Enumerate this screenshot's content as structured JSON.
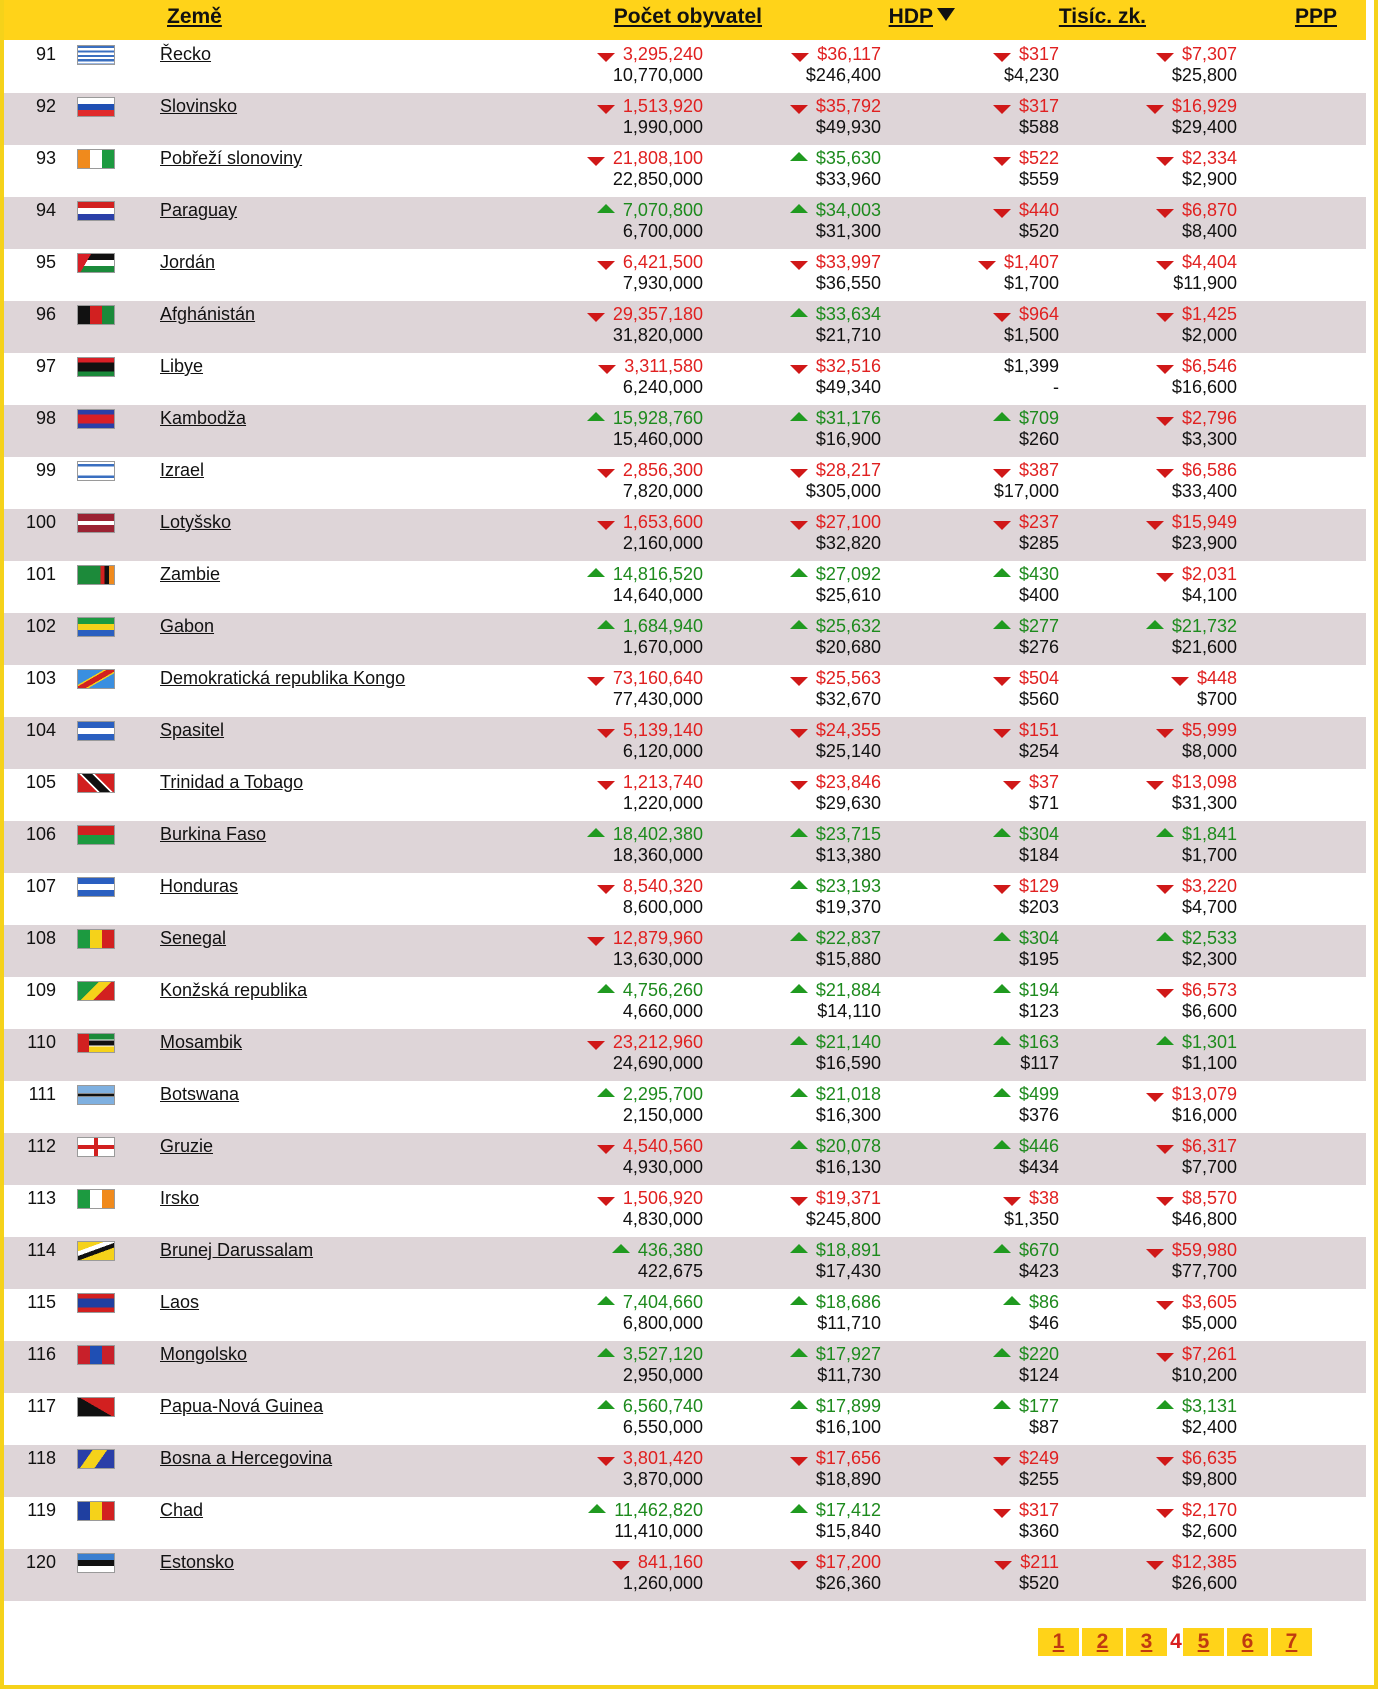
{
  "header": {
    "country": "Země",
    "population": "Počet obyvatel",
    "gdp": "HDP",
    "thousands": "Tisíc. zk.",
    "ppp": "PPP"
  },
  "rows": [
    {
      "rank": "91",
      "name": "Řecko",
      "flag": "greece-flag",
      "pop": "3,295,240",
      "pop_dir": "down",
      "pop2": "10,770,000",
      "gdp": "$36,117",
      "gdp_dir": "down",
      "gdp2": "$246,400",
      "tz": "$317",
      "tz_dir": "down",
      "tz2": "$4,230",
      "ppp": "$7,307",
      "ppp_dir": "down",
      "ppp2": "$25,800"
    },
    {
      "rank": "92",
      "name": "Slovinsko",
      "flag": "slovenia-flag",
      "pop": "1,513,920",
      "pop_dir": "down",
      "pop2": "1,990,000",
      "gdp": "$35,792",
      "gdp_dir": "down",
      "gdp2": "$49,930",
      "tz": "$317",
      "tz_dir": "down",
      "tz2": "$588",
      "ppp": "$16,929",
      "ppp_dir": "down",
      "ppp2": "$29,400"
    },
    {
      "rank": "93",
      "name": "Pobřeží slonoviny",
      "flag": "ivory-coast-flag",
      "pop": "21,808,100",
      "pop_dir": "down",
      "pop2": "22,850,000",
      "gdp": "$35,630",
      "gdp_dir": "up",
      "gdp2": "$33,960",
      "tz": "$522",
      "tz_dir": "down",
      "tz2": "$559",
      "ppp": "$2,334",
      "ppp_dir": "down",
      "ppp2": "$2,900"
    },
    {
      "rank": "94",
      "name": "Paraguay",
      "flag": "paraguay-flag",
      "pop": "7,070,800",
      "pop_dir": "up",
      "pop2": "6,700,000",
      "gdp": "$34,003",
      "gdp_dir": "up",
      "gdp2": "$31,300",
      "tz": "$440",
      "tz_dir": "down",
      "tz2": "$520",
      "ppp": "$6,870",
      "ppp_dir": "down",
      "ppp2": "$8,400"
    },
    {
      "rank": "95",
      "name": "Jordán",
      "flag": "jordan-flag",
      "pop": "6,421,500",
      "pop_dir": "down",
      "pop2": "7,930,000",
      "gdp": "$33,997",
      "gdp_dir": "down",
      "gdp2": "$36,550",
      "tz": "$1,407",
      "tz_dir": "down",
      "tz2": "$1,700",
      "ppp": "$4,404",
      "ppp_dir": "down",
      "ppp2": "$11,900"
    },
    {
      "rank": "96",
      "name": "Afghánistán",
      "flag": "afghanistan-flag",
      "pop": "29,357,180",
      "pop_dir": "down",
      "pop2": "31,820,000",
      "gdp": "$33,634",
      "gdp_dir": "up",
      "gdp2": "$21,710",
      "tz": "$964",
      "tz_dir": "down",
      "tz2": "$1,500",
      "ppp": "$1,425",
      "ppp_dir": "down",
      "ppp2": "$2,000"
    },
    {
      "rank": "97",
      "name": "Libye",
      "flag": "libya-flag",
      "pop": "3,311,580",
      "pop_dir": "down",
      "pop2": "6,240,000",
      "gdp": "$32,516",
      "gdp_dir": "down",
      "gdp2": "$49,340",
      "tz": "$1,399",
      "tz_dir": "none",
      "tz2": "-",
      "ppp": "$6,546",
      "ppp_dir": "down",
      "ppp2": "$16,600"
    },
    {
      "rank": "98",
      "name": "Kambodža",
      "flag": "cambodia-flag",
      "pop": "15,928,760",
      "pop_dir": "up",
      "pop2": "15,460,000",
      "gdp": "$31,176",
      "gdp_dir": "up",
      "gdp2": "$16,900",
      "tz": "$709",
      "tz_dir": "up",
      "tz2": "$260",
      "ppp": "$2,796",
      "ppp_dir": "down",
      "ppp2": "$3,300"
    },
    {
      "rank": "99",
      "name": "Izrael",
      "flag": "israel-flag",
      "pop": "2,856,300",
      "pop_dir": "down",
      "pop2": "7,820,000",
      "gdp": "$28,217",
      "gdp_dir": "down",
      "gdp2": "$305,000",
      "tz": "$387",
      "tz_dir": "down",
      "tz2": "$17,000",
      "ppp": "$6,586",
      "ppp_dir": "down",
      "ppp2": "$33,400"
    },
    {
      "rank": "100",
      "name": "Lotyšsko",
      "flag": "latvia-flag",
      "pop": "1,653,600",
      "pop_dir": "down",
      "pop2": "2,160,000",
      "gdp": "$27,100",
      "gdp_dir": "down",
      "gdp2": "$32,820",
      "tz": "$237",
      "tz_dir": "down",
      "tz2": "$285",
      "ppp": "$15,949",
      "ppp_dir": "down",
      "ppp2": "$23,900"
    },
    {
      "rank": "101",
      "name": "Zambie",
      "flag": "zambia-flag",
      "pop": "14,816,520",
      "pop_dir": "up",
      "pop2": "14,640,000",
      "gdp": "$27,092",
      "gdp_dir": "up",
      "gdp2": "$25,610",
      "tz": "$430",
      "tz_dir": "up",
      "tz2": "$400",
      "ppp": "$2,031",
      "ppp_dir": "down",
      "ppp2": "$4,100"
    },
    {
      "rank": "102",
      "name": "Gabon",
      "flag": "gabon-flag",
      "pop": "1,684,940",
      "pop_dir": "up",
      "pop2": "1,670,000",
      "gdp": "$25,632",
      "gdp_dir": "up",
      "gdp2": "$20,680",
      "tz": "$277",
      "tz_dir": "up",
      "tz2": "$276",
      "ppp": "$21,732",
      "ppp_dir": "up",
      "ppp2": "$21,600"
    },
    {
      "rank": "103",
      "name": "Demokratická republika Kongo",
      "flag": "dr-congo-flag",
      "pop": "73,160,640",
      "pop_dir": "down",
      "pop2": "77,430,000",
      "gdp": "$25,563",
      "gdp_dir": "down",
      "gdp2": "$32,670",
      "tz": "$504",
      "tz_dir": "down",
      "tz2": "$560",
      "ppp": "$448",
      "ppp_dir": "down",
      "ppp2": "$700"
    },
    {
      "rank": "104",
      "name": "Spasitel",
      "flag": "el-salvador-flag",
      "pop": "5,139,140",
      "pop_dir": "down",
      "pop2": "6,120,000",
      "gdp": "$24,355",
      "gdp_dir": "down",
      "gdp2": "$25,140",
      "tz": "$151",
      "tz_dir": "down",
      "tz2": "$254",
      "ppp": "$5,999",
      "ppp_dir": "down",
      "ppp2": "$8,000"
    },
    {
      "rank": "105",
      "name": "Trinidad a Tobago",
      "flag": "trinidad-flag",
      "pop": "1,213,740",
      "pop_dir": "down",
      "pop2": "1,220,000",
      "gdp": "$23,846",
      "gdp_dir": "down",
      "gdp2": "$29,630",
      "tz": "$37",
      "tz_dir": "down",
      "tz2": "$71",
      "ppp": "$13,098",
      "ppp_dir": "down",
      "ppp2": "$31,300"
    },
    {
      "rank": "106",
      "name": "Burkina Faso",
      "flag": "burkina-faso-flag",
      "pop": "18,402,380",
      "pop_dir": "up",
      "pop2": "18,360,000",
      "gdp": "$23,715",
      "gdp_dir": "up",
      "gdp2": "$13,380",
      "tz": "$304",
      "tz_dir": "up",
      "tz2": "$184",
      "ppp": "$1,841",
      "ppp_dir": "up",
      "ppp2": "$1,700"
    },
    {
      "rank": "107",
      "name": "Honduras",
      "flag": "honduras-flag",
      "pop": "8,540,320",
      "pop_dir": "down",
      "pop2": "8,600,000",
      "gdp": "$23,193",
      "gdp_dir": "up",
      "gdp2": "$19,370",
      "tz": "$129",
      "tz_dir": "down",
      "tz2": "$203",
      "ppp": "$3,220",
      "ppp_dir": "down",
      "ppp2": "$4,700"
    },
    {
      "rank": "108",
      "name": "Senegal",
      "flag": "senegal-flag",
      "pop": "12,879,960",
      "pop_dir": "down",
      "pop2": "13,630,000",
      "gdp": "$22,837",
      "gdp_dir": "up",
      "gdp2": "$15,880",
      "tz": "$304",
      "tz_dir": "up",
      "tz2": "$195",
      "ppp": "$2,533",
      "ppp_dir": "up",
      "ppp2": "$2,300"
    },
    {
      "rank": "109",
      "name": "Konžská republika",
      "flag": "congo-flag",
      "pop": "4,756,260",
      "pop_dir": "up",
      "pop2": "4,660,000",
      "gdp": "$21,884",
      "gdp_dir": "up",
      "gdp2": "$14,110",
      "tz": "$194",
      "tz_dir": "up",
      "tz2": "$123",
      "ppp": "$6,573",
      "ppp_dir": "down",
      "ppp2": "$6,600"
    },
    {
      "rank": "110",
      "name": "Mosambik",
      "flag": "mozambique-flag",
      "pop": "23,212,960",
      "pop_dir": "down",
      "pop2": "24,690,000",
      "gdp": "$21,140",
      "gdp_dir": "up",
      "gdp2": "$16,590",
      "tz": "$163",
      "tz_dir": "up",
      "tz2": "$117",
      "ppp": "$1,301",
      "ppp_dir": "up",
      "ppp2": "$1,100"
    },
    {
      "rank": "111",
      "name": "Botswana",
      "flag": "botswana-flag",
      "pop": "2,295,700",
      "pop_dir": "up",
      "pop2": "2,150,000",
      "gdp": "$21,018",
      "gdp_dir": "up",
      "gdp2": "$16,300",
      "tz": "$499",
      "tz_dir": "up",
      "tz2": "$376",
      "ppp": "$13,079",
      "ppp_dir": "down",
      "ppp2": "$16,000"
    },
    {
      "rank": "112",
      "name": "Gruzie",
      "flag": "georgia-flag",
      "pop": "4,540,560",
      "pop_dir": "down",
      "pop2": "4,930,000",
      "gdp": "$20,078",
      "gdp_dir": "up",
      "gdp2": "$16,130",
      "tz": "$446",
      "tz_dir": "up",
      "tz2": "$434",
      "ppp": "$6,317",
      "ppp_dir": "down",
      "ppp2": "$7,700"
    },
    {
      "rank": "113",
      "name": "Irsko",
      "flag": "ireland-flag",
      "pop": "1,506,920",
      "pop_dir": "down",
      "pop2": "4,830,000",
      "gdp": "$19,371",
      "gdp_dir": "down",
      "gdp2": "$245,800",
      "tz": "$38",
      "tz_dir": "down",
      "tz2": "$1,350",
      "ppp": "$8,570",
      "ppp_dir": "down",
      "ppp2": "$46,800"
    },
    {
      "rank": "114",
      "name": "Brunej Darussalam",
      "flag": "brunei-flag",
      "pop": "436,380",
      "pop_dir": "up",
      "pop2": "422,675",
      "gdp": "$18,891",
      "gdp_dir": "up",
      "gdp2": "$17,430",
      "tz": "$670",
      "tz_dir": "up",
      "tz2": "$423",
      "ppp": "$59,980",
      "ppp_dir": "down",
      "ppp2": "$77,700"
    },
    {
      "rank": "115",
      "name": "Laos",
      "flag": "laos-flag",
      "pop": "7,404,660",
      "pop_dir": "up",
      "pop2": "6,800,000",
      "gdp": "$18,686",
      "gdp_dir": "up",
      "gdp2": "$11,710",
      "tz": "$86",
      "tz_dir": "up",
      "tz2": "$46",
      "ppp": "$3,605",
      "ppp_dir": "down",
      "ppp2": "$5,000"
    },
    {
      "rank": "116",
      "name": "Mongolsko",
      "flag": "mongolia-flag",
      "pop": "3,527,120",
      "pop_dir": "up",
      "pop2": "2,950,000",
      "gdp": "$17,927",
      "gdp_dir": "up",
      "gdp2": "$11,730",
      "tz": "$220",
      "tz_dir": "up",
      "tz2": "$124",
      "ppp": "$7,261",
      "ppp_dir": "down",
      "ppp2": "$10,200"
    },
    {
      "rank": "117",
      "name": "Papua-Nová Guinea",
      "flag": "papua-new-guinea-flag",
      "pop": "6,560,740",
      "pop_dir": "up",
      "pop2": "6,550,000",
      "gdp": "$17,899",
      "gdp_dir": "up",
      "gdp2": "$16,100",
      "tz": "$177",
      "tz_dir": "up",
      "tz2": "$87",
      "ppp": "$3,131",
      "ppp_dir": "up",
      "ppp2": "$2,400"
    },
    {
      "rank": "118",
      "name": "Bosna a Hercegovina",
      "flag": "bosnia-flag",
      "pop": "3,801,420",
      "pop_dir": "down",
      "pop2": "3,870,000",
      "gdp": "$17,656",
      "gdp_dir": "down",
      "gdp2": "$18,890",
      "tz": "$249",
      "tz_dir": "down",
      "tz2": "$255",
      "ppp": "$6,635",
      "ppp_dir": "down",
      "ppp2": "$9,800"
    },
    {
      "rank": "119",
      "name": "Chad",
      "flag": "chad-flag",
      "pop": "11,462,820",
      "pop_dir": "up",
      "pop2": "11,410,000",
      "gdp": "$17,412",
      "gdp_dir": "up",
      "gdp2": "$15,840",
      "tz": "$317",
      "tz_dir": "down",
      "tz2": "$360",
      "ppp": "$2,170",
      "ppp_dir": "down",
      "ppp2": "$2,600"
    },
    {
      "rank": "120",
      "name": "Estonsko",
      "flag": "estonia-flag",
      "pop": "841,160",
      "pop_dir": "down",
      "pop2": "1,260,000",
      "gdp": "$17,200",
      "gdp_dir": "down",
      "gdp2": "$26,360",
      "tz": "$211",
      "tz_dir": "down",
      "tz2": "$520",
      "ppp": "$12,385",
      "ppp_dir": "down",
      "ppp2": "$26,600"
    }
  ],
  "pagination": {
    "pages": [
      "1",
      "2",
      "3",
      "4",
      "5",
      "6",
      "7"
    ],
    "current": "4"
  },
  "colors": {
    "header_bg": "#ffd319",
    "row_alt_bg": "#ded5d8",
    "up": "#1d8a1d",
    "down": "#e02020"
  }
}
